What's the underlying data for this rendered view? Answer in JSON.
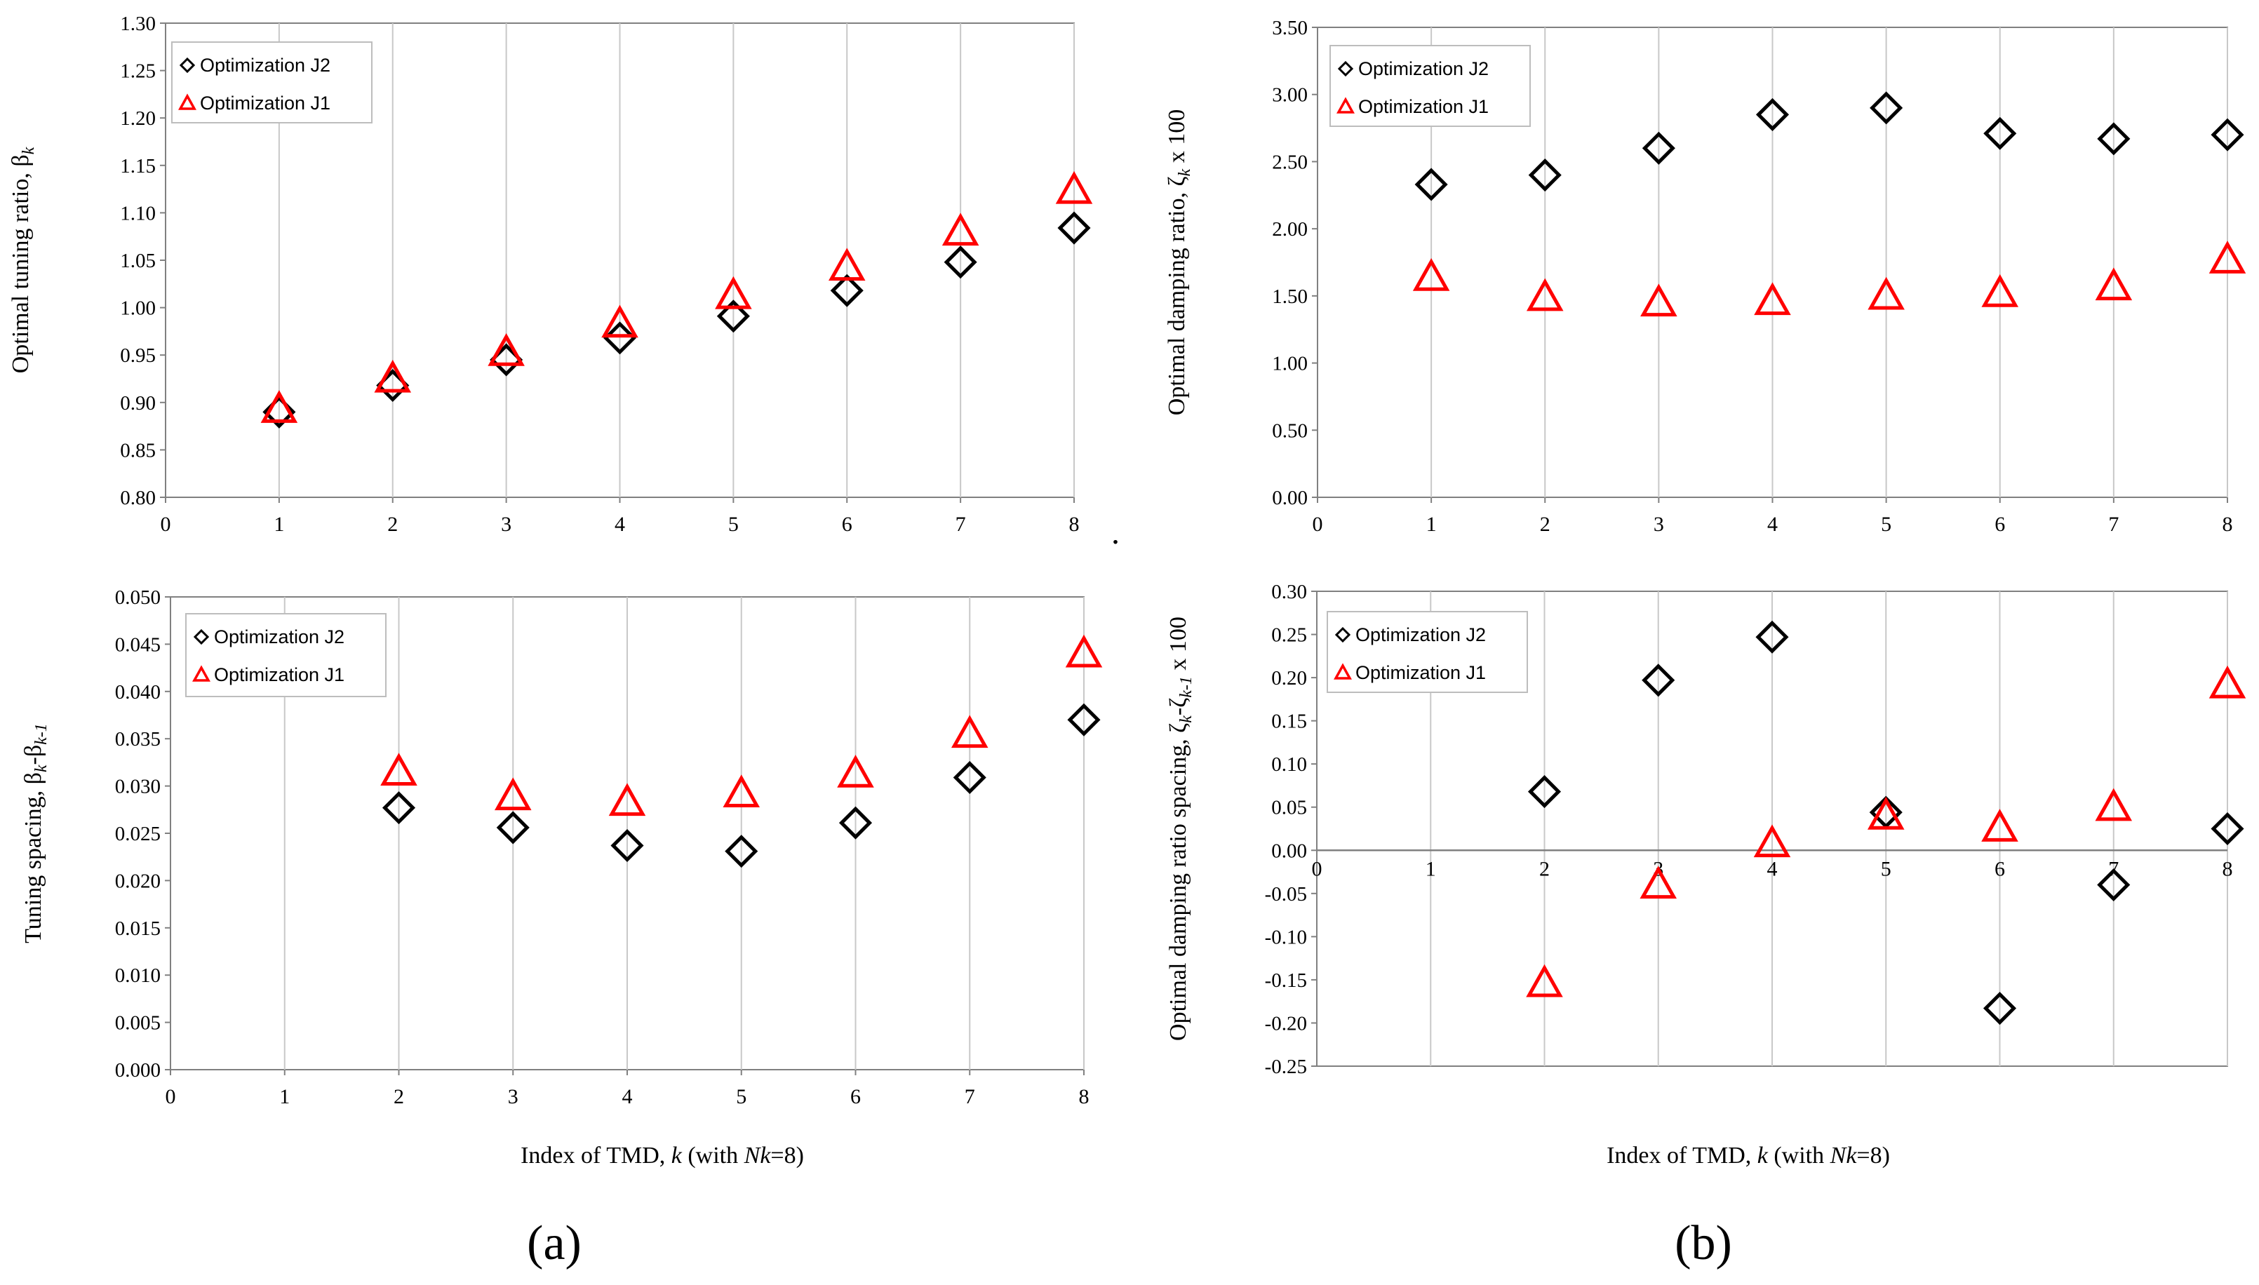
{
  "colors": {
    "j2": "#000000",
    "j1": "#ff0000",
    "grid": "#c8c8c8",
    "axis": "#808080",
    "text": "#000000"
  },
  "figure": {
    "panel_a_label": "(a)",
    "panel_b_label": "(b)",
    "x_title_prefix": "Index of  TMD, ",
    "x_title_k": "k",
    "x_title_mid": " (with ",
    "x_title_nk": "Nk",
    "x_title_suffix": "=8)",
    "separator_dot": "."
  },
  "chart_data": [
    {
      "id": "a-top",
      "type": "scatter",
      "title": "",
      "ylabel": "Optimal tuning ratio, β",
      "ylabel_sub": "k",
      "xlabel": "",
      "xlim": [
        0,
        8
      ],
      "ylim": [
        0.8,
        1.3
      ],
      "xticks": [
        "0",
        "1",
        "2",
        "3",
        "4",
        "5",
        "6",
        "7",
        "8"
      ],
      "yticks": [
        "0.80",
        "0.85",
        "0.90",
        "0.95",
        "1.00",
        "1.05",
        "1.10",
        "1.15",
        "1.20",
        "1.25",
        "1.30"
      ],
      "grid": "vertical",
      "legend": "top-left",
      "series": [
        {
          "name": "Optimization J2",
          "marker": "diamond",
          "x": [
            1,
            2,
            3,
            4,
            5,
            6,
            7,
            8
          ],
          "values": [
            0.89,
            0.918,
            0.945,
            0.968,
            0.991,
            1.018,
            1.048,
            1.084
          ]
        },
        {
          "name": "Optimization J1",
          "marker": "triangle",
          "x": [
            1,
            2,
            3,
            4,
            5,
            6,
            7,
            8
          ],
          "values": [
            0.893,
            0.925,
            0.953,
            0.983,
            1.013,
            1.043,
            1.08,
            1.124
          ]
        }
      ]
    },
    {
      "id": "b-top",
      "type": "scatter",
      "title": "",
      "ylabel": "Optimal damping ratio, ζ",
      "ylabel_sub": "k",
      "ylabel_suffix": " x 100",
      "xlabel": "",
      "xlim": [
        0,
        8
      ],
      "ylim": [
        0.0,
        3.5
      ],
      "xticks": [
        "0",
        "1",
        "2",
        "3",
        "4",
        "5",
        "6",
        "7",
        "8"
      ],
      "yticks": [
        "0.00",
        "0.50",
        "1.00",
        "1.50",
        "2.00",
        "2.50",
        "3.00",
        "3.50"
      ],
      "grid": "vertical",
      "legend": "top-left",
      "series": [
        {
          "name": "Optimization J2",
          "marker": "diamond",
          "x": [
            1,
            2,
            3,
            4,
            5,
            6,
            7,
            8
          ],
          "values": [
            2.33,
            2.4,
            2.6,
            2.85,
            2.9,
            2.71,
            2.67,
            2.7
          ]
        },
        {
          "name": "Optimization J1",
          "marker": "triangle",
          "x": [
            1,
            2,
            3,
            4,
            5,
            6,
            7,
            8
          ],
          "values": [
            1.64,
            1.49,
            1.45,
            1.46,
            1.5,
            1.52,
            1.57,
            1.77
          ]
        }
      ]
    },
    {
      "id": "a-bottom",
      "type": "scatter",
      "title": "",
      "ylabel": "Tuning spacing, β",
      "ylabel_sub": "k",
      "ylabel_mid": "-β",
      "ylabel_sub2": "k-1",
      "xlabel": "Index of  TMD, k (with Nk=8)",
      "xlim": [
        0,
        8
      ],
      "ylim": [
        0.0,
        0.05
      ],
      "xticks": [
        "0",
        "1",
        "2",
        "3",
        "4",
        "5",
        "6",
        "7",
        "8"
      ],
      "yticks": [
        "0.000",
        "0.005",
        "0.010",
        "0.015",
        "0.020",
        "0.025",
        "0.030",
        "0.035",
        "0.040",
        "0.045",
        "0.050"
      ],
      "grid": "vertical",
      "legend": "top-left",
      "series": [
        {
          "name": "Optimization J2",
          "marker": "diamond",
          "x": [
            2,
            3,
            4,
            5,
            6,
            7,
            8
          ],
          "values": [
            0.0277,
            0.0256,
            0.0237,
            0.0231,
            0.0261,
            0.0309,
            0.037
          ]
        },
        {
          "name": "Optimization J1",
          "marker": "triangle",
          "x": [
            2,
            3,
            4,
            5,
            6,
            7,
            8
          ],
          "values": [
            0.0315,
            0.0289,
            0.0283,
            0.0292,
            0.0313,
            0.0355,
            0.044
          ]
        }
      ]
    },
    {
      "id": "b-bottom",
      "type": "scatter",
      "title": "",
      "ylabel": "Optimal damping ratio spacing, ζ",
      "ylabel_sub": "k",
      "ylabel_mid": "-ζ",
      "ylabel_sub2": "k-1",
      "ylabel_suffix": " x 100",
      "xlabel": "Index of  TMD, k (with Nk=8)",
      "xlim": [
        0,
        8
      ],
      "ylim": [
        -0.25,
        0.3
      ],
      "xticks": [
        "0",
        "1",
        "2",
        "3",
        "4",
        "5",
        "6",
        "7",
        "8"
      ],
      "yticks": [
        "-0.25",
        "-0.20",
        "-0.15",
        "-0.10",
        "-0.05",
        "0.00",
        "0.05",
        "0.10",
        "0.15",
        "0.20",
        "0.25",
        "0.30"
      ],
      "grid": "vertical",
      "legend": "top-left",
      "series": [
        {
          "name": "Optimization J2",
          "marker": "diamond",
          "x": [
            2,
            3,
            4,
            5,
            6,
            7,
            8
          ],
          "values": [
            0.068,
            0.197,
            0.247,
            0.044,
            -0.183,
            -0.04,
            0.025
          ]
        },
        {
          "name": "Optimization J1",
          "marker": "triangle",
          "x": [
            2,
            3,
            4,
            5,
            6,
            7,
            8
          ],
          "values": [
            -0.154,
            -0.04,
            0.008,
            0.04,
            0.026,
            0.05,
            0.192
          ]
        }
      ]
    }
  ]
}
